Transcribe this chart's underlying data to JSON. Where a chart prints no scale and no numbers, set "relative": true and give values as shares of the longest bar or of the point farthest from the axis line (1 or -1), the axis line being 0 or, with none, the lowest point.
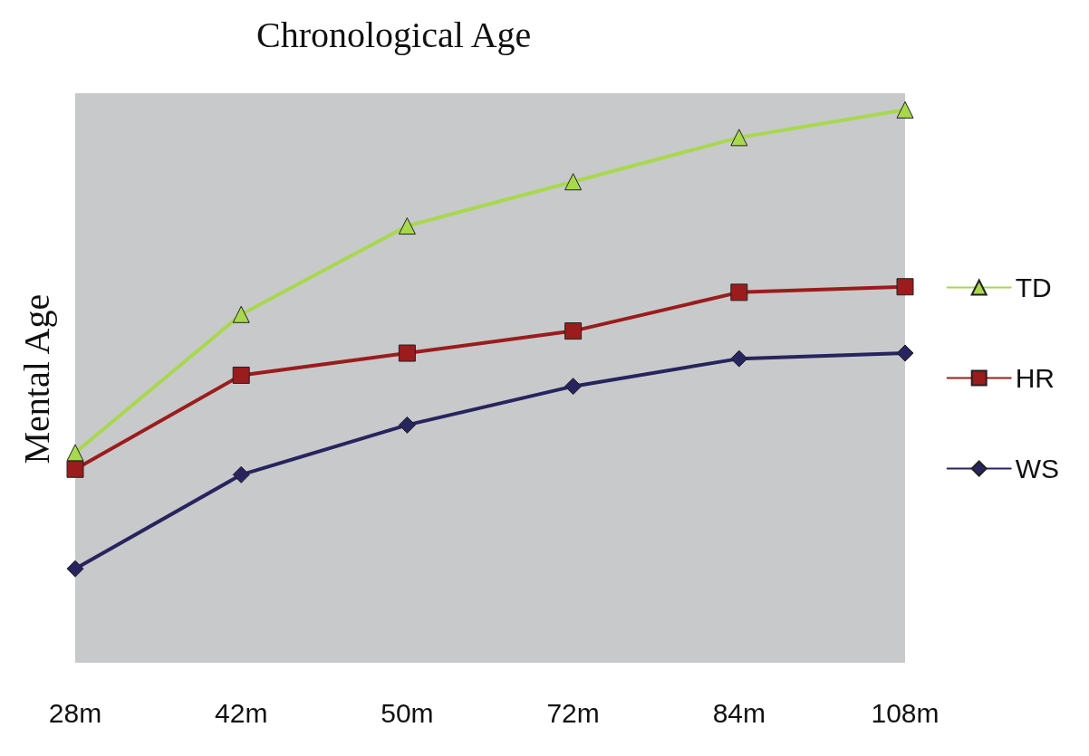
{
  "chart_data": {
    "type": "line",
    "title": "Chronological Age",
    "ylabel": "Mental Age",
    "relative": true,
    "legend": "right",
    "grid": false,
    "categories": [
      "28m",
      "42m",
      "50m",
      "72m",
      "84m",
      "108m"
    ],
    "series": [
      {
        "name": "TD",
        "color": "#a8d84e",
        "marker": "triangle",
        "values": [
          0.38,
          0.63,
          0.79,
          0.87,
          0.95,
          1.0
        ]
      },
      {
        "name": "HR",
        "color": "#9b1c1c",
        "marker": "square",
        "values": [
          0.35,
          0.52,
          0.56,
          0.6,
          0.67,
          0.68
        ]
      },
      {
        "name": "WS",
        "color": "#27245e",
        "marker": "diamond",
        "values": [
          0.17,
          0.34,
          0.43,
          0.5,
          0.55,
          0.56
        ]
      }
    ]
  }
}
